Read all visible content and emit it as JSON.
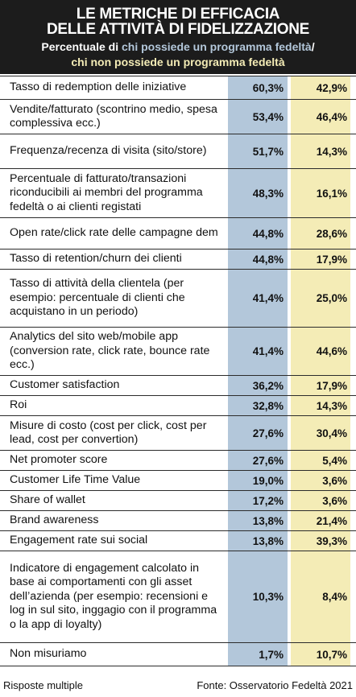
{
  "header": {
    "title_line1": "LE METRICHE DI EFFICACIA",
    "title_line2": "DELLE ATTIVITÀ DI FIDELIZZAZIONE",
    "subtitle_prefix": "Percentuale di ",
    "subtitle_series1": "chi possiede un programma fedeltà",
    "subtitle_sep": "/",
    "subtitle_series2": "chi non possiede un programma fedeltà"
  },
  "colors": {
    "header_bg": "#1c1c1c",
    "series1": "#b3c7da",
    "series2": "#f4ecb6",
    "divider": "#2b2b2b"
  },
  "chart_data": {
    "type": "table",
    "title": "LE METRICHE DI EFFICACIA DELLE ATTIVITÀ DI FIDELIZZAZIONE",
    "series": [
      {
        "name": "chi possiede un programma fedeltà"
      },
      {
        "name": "chi non possiede un programma fedeltà"
      }
    ],
    "rows": [
      {
        "label": "Tasso di redemption delle iniziative",
        "v1": "60,3%",
        "v2": "42,9%"
      },
      {
        "label": "Vendite/fatturato (scontrino medio, spesa complessiva ecc.)",
        "v1": "53,4%",
        "v2": "46,4%"
      },
      {
        "label": "Frequenza/recenza di visita (sito/store)",
        "v1": "51,7%",
        "v2": "14,3%"
      },
      {
        "label": "Percentuale di fatturato/transazioni riconducibili ai membri del programma fedeltà o ai clienti registati",
        "v1": "48,3%",
        "v2": "16,1%"
      },
      {
        "label": "Open rate/click rate delle campagne dem",
        "v1": "44,8%",
        "v2": "28,6%"
      },
      {
        "label": "Tasso di retention/churn dei clienti",
        "v1": "44,8%",
        "v2": "17,9%"
      },
      {
        "label": "Tasso di attività della clientela (per esempio: percentuale  di clienti che acquistano in un periodo)",
        "v1": "41,4%",
        "v2": "25,0%"
      },
      {
        "label": "Analytics del sito web/mobile app (conversion rate, click rate, bounce rate ecc.)",
        "v1": "41,4%",
        "v2": "44,6%"
      },
      {
        "label": "Customer satisfaction",
        "v1": "36,2%",
        "v2": "17,9%"
      },
      {
        "label": "Roi",
        "v1": "32,8%",
        "v2": "14,3%"
      },
      {
        "label": "Misure di costo (cost per click, cost per lead, cost per convertion)",
        "v1": "27,6%",
        "v2": "30,4%"
      },
      {
        "label": "Net promoter score",
        "v1": "27,6%",
        "v2": "5,4%"
      },
      {
        "label": "Customer Life Time Value",
        "v1": "19,0%",
        "v2": "3,6%"
      },
      {
        "label": "Share of wallet",
        "v1": "17,2%",
        "v2": "3,6%"
      },
      {
        "label": "Brand awareness",
        "v1": "13,8%",
        "v2": "21,4%"
      },
      {
        "label": "Engagement rate sui social",
        "v1": "13,8%",
        "v2": "39,3%"
      },
      {
        "label": "Indicatore di engagement calcolato in base ai comportamenti con gli asset dell’azienda (per esempio: recensioni e log in sul sito, inggagio con il programma o la app di loyalty)",
        "v1": "10,3%",
        "v2": "8,4%"
      },
      {
        "label": "Non misuriamo",
        "v1": "1,7%",
        "v2": "10,7%"
      }
    ]
  },
  "footer": {
    "note": "Risposte multiple",
    "source": "Fonte: Osservatorio Fedeltà 2021"
  }
}
